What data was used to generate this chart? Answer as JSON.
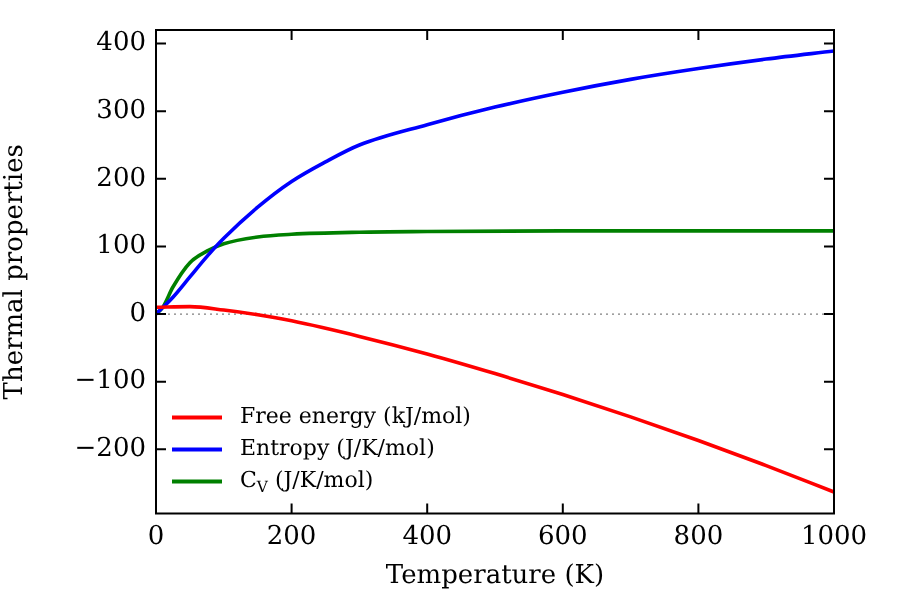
{
  "chart_data": {
    "type": "line",
    "xlabel": "Temperature (K)",
    "ylabel": "Thermal properties",
    "xlim": [
      0,
      1000
    ],
    "xticks": [
      0,
      200,
      400,
      600,
      800,
      1000
    ],
    "ylim": [
      -295,
      420
    ],
    "yticks": [
      -200,
      -100,
      0,
      100,
      200,
      300,
      400
    ],
    "grid": false,
    "legend": "bottom left",
    "marker": "none",
    "line_style": "solid",
    "ref_lines": [
      {
        "axis": "y",
        "value": 0,
        "color": "#808080",
        "line_style": "dotted"
      }
    ],
    "series": [
      {
        "name": "Free energy (kJ/mol)",
        "color": "#ff0000",
        "x": [
          0,
          50,
          100,
          150,
          200,
          300,
          400,
          500,
          600,
          700,
          800,
          900,
          1000
        ],
        "values": [
          10,
          11,
          6,
          -1,
          -10,
          -33,
          -59,
          -88,
          -119,
          -152,
          -187,
          -224,
          -263
        ]
      },
      {
        "name": "Entropy (J/K/mol)",
        "color": "#0000ff",
        "x": [
          0,
          25,
          50,
          75,
          100,
          150,
          200,
          250,
          300,
          400,
          500,
          600,
          700,
          800,
          900,
          1000
        ],
        "values": [
          0,
          25,
          55,
          85,
          112,
          158,
          196,
          225,
          250,
          280,
          306,
          328,
          347,
          363,
          377,
          389
        ]
      },
      {
        "name": "C$_{V}$ (J/K/mol)",
        "color": "#008000",
        "x": [
          0,
          10,
          25,
          50,
          75,
          100,
          150,
          200,
          300,
          400,
          600,
          1000
        ],
        "values": [
          0,
          10,
          40,
          76,
          93,
          104,
          114,
          118,
          121,
          122,
          123,
          123
        ]
      }
    ]
  }
}
